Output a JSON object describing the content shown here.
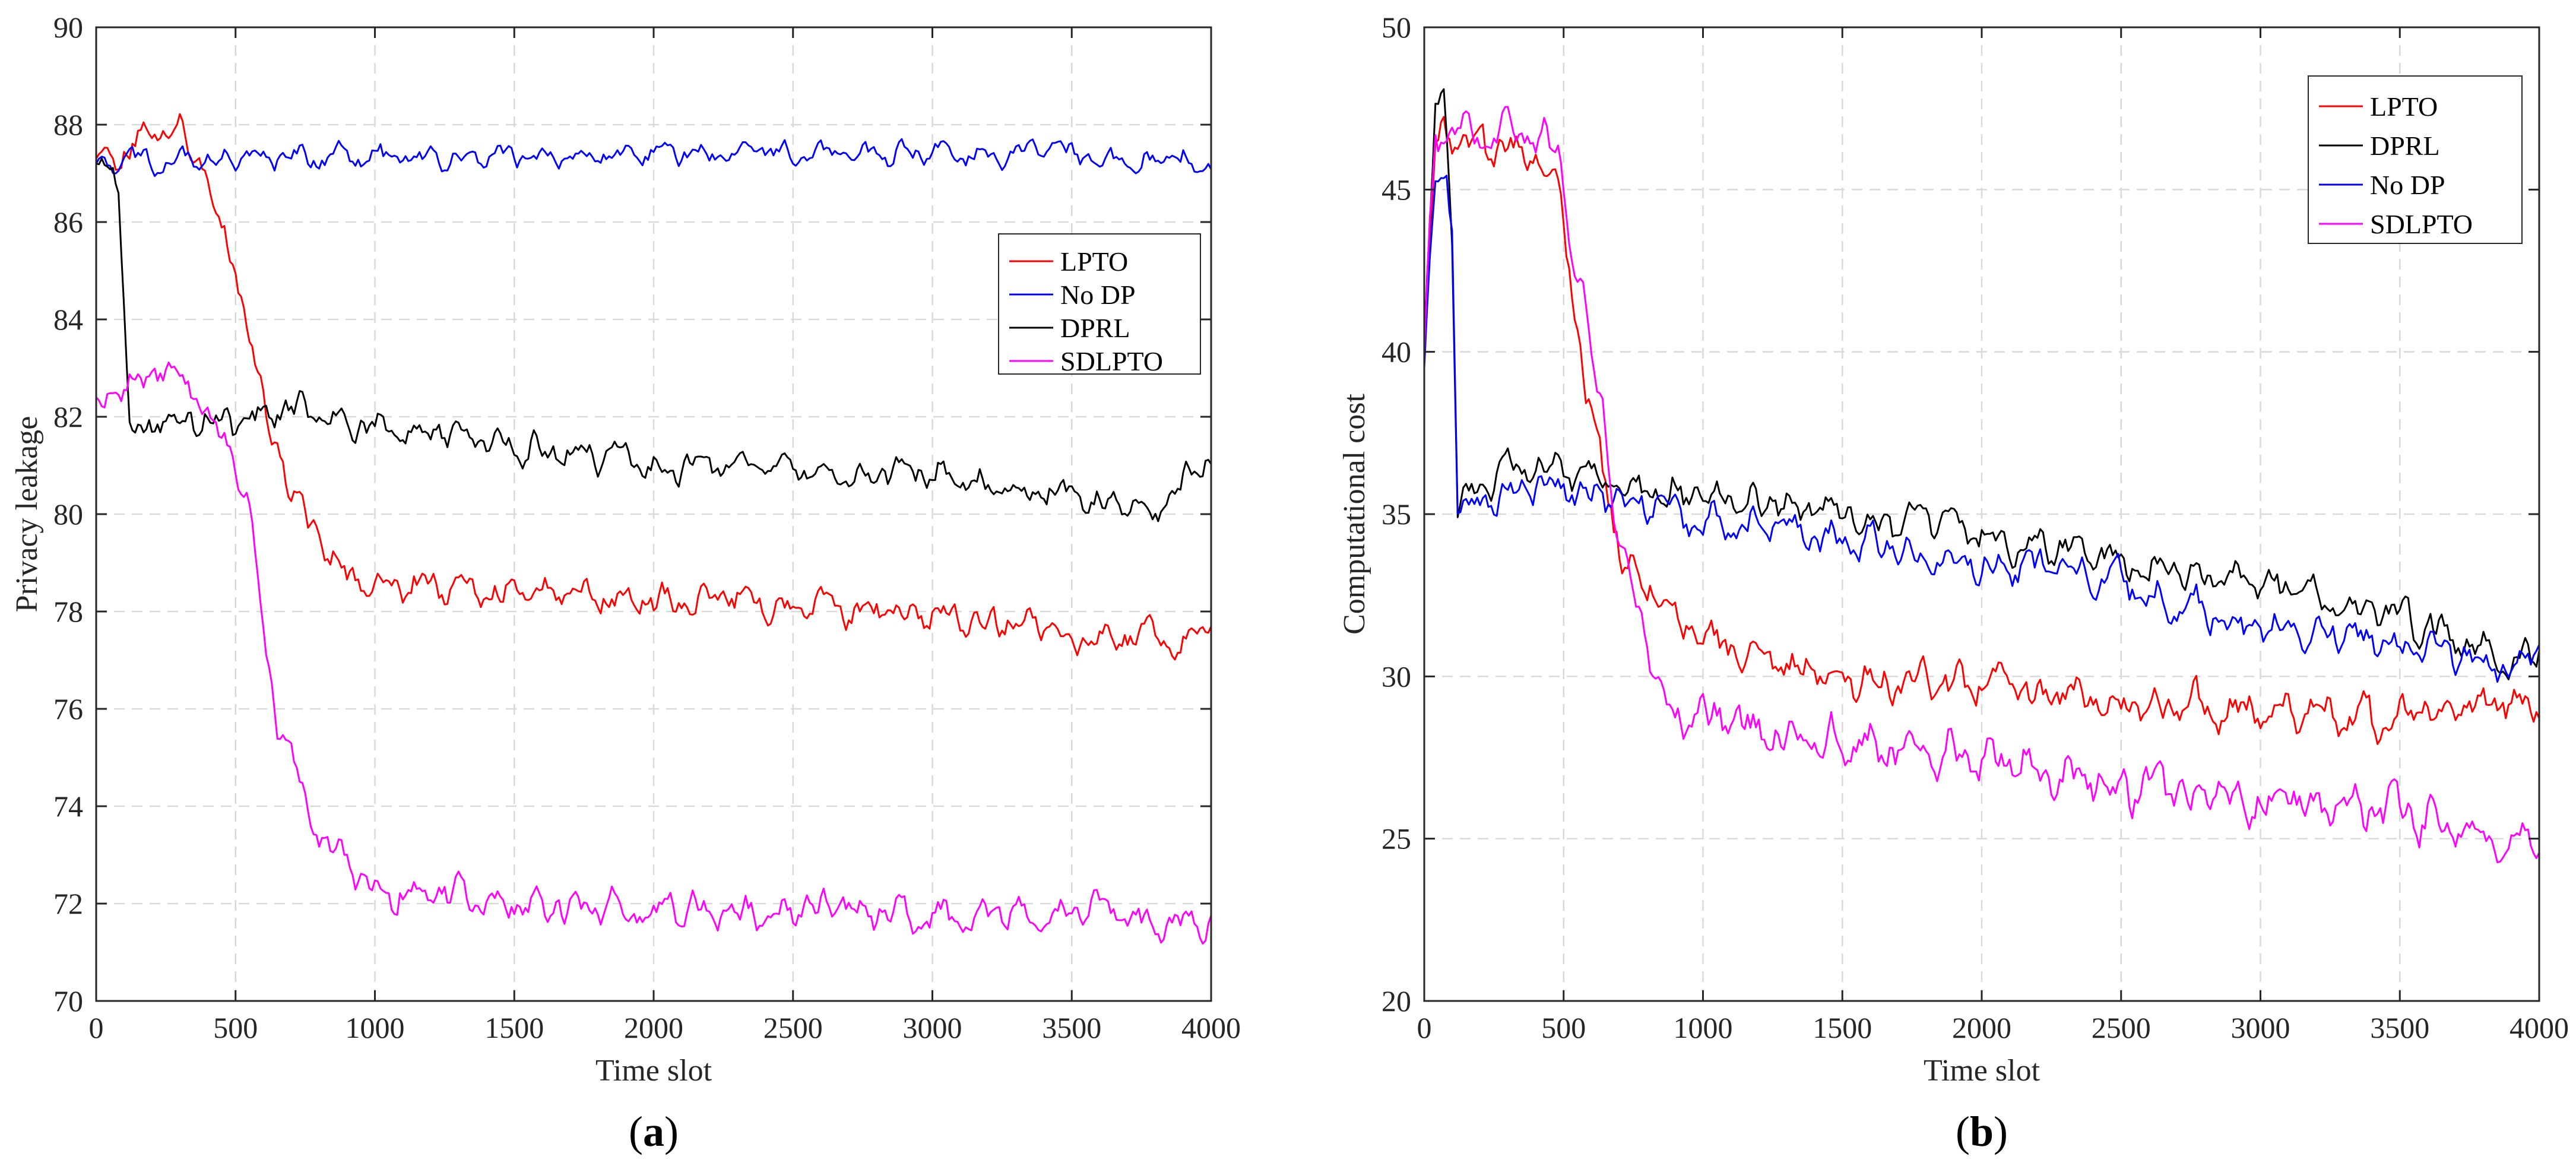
{
  "chart_data": [
    {
      "type": "line",
      "panel_label": {
        "open": "(",
        "letter": "a",
        "close": ")"
      },
      "title": "",
      "xlabel": "Time slot",
      "ylabel": "Privacy leakage",
      "xlim": [
        0,
        4000
      ],
      "ylim": [
        70,
        90
      ],
      "xticks": [
        0,
        500,
        1000,
        1500,
        2000,
        2500,
        3000,
        3500,
        4000
      ],
      "yticks": [
        70,
        72,
        74,
        76,
        78,
        80,
        82,
        84,
        86,
        88,
        90
      ],
      "grid": true,
      "legend_position": "right-upper",
      "series": [
        {
          "name": "LPTO",
          "color": "#ff0000",
          "x": [
            0,
            100,
            200,
            300,
            400,
            500,
            600,
            700,
            800,
            900,
            1000,
            1250,
            1500,
            1750,
            2000,
            2250,
            2500,
            2750,
            3000,
            3250,
            3500,
            3650,
            3800,
            3900,
            4000
          ],
          "y": [
            87.3,
            87.5,
            87.9,
            88.0,
            86.8,
            85.0,
            82.2,
            80.5,
            79.5,
            78.7,
            78.6,
            78.5,
            78.4,
            78.3,
            78.2,
            78.2,
            78.1,
            78.0,
            77.9,
            77.8,
            77.6,
            77.4,
            77.5,
            77.2,
            78.0
          ],
          "noise": 0.45
        },
        {
          "name": "No DP",
          "color": "#0000ff",
          "x": [
            0,
            500,
            1000,
            1500,
            2000,
            2500,
            3000,
            3500,
            4000
          ],
          "y": [
            87.2,
            87.3,
            87.35,
            87.4,
            87.4,
            87.45,
            87.4,
            87.35,
            87.2
          ],
          "noise": 0.35
        },
        {
          "name": "DPRL",
          "color": "#000000",
          "x": [
            0,
            80,
            120,
            200,
            300,
            400,
            500,
            700,
            1000,
            1300,
            1500,
            1800,
            2000,
            2500,
            3000,
            3500,
            3800,
            4000
          ],
          "y": [
            87.2,
            87.0,
            81.6,
            81.9,
            82.1,
            81.9,
            81.8,
            82.2,
            81.8,
            81.6,
            81.4,
            81.2,
            81.0,
            80.9,
            80.8,
            80.4,
            80.1,
            81.2
          ],
          "noise": 0.45
        },
        {
          "name": "SDLPTO",
          "color": "#ff00ff",
          "x": [
            0,
            200,
            300,
            500,
            550,
            600,
            650,
            700,
            750,
            800,
            900,
            1000,
            1500,
            2000,
            2500,
            3000,
            3500,
            4000
          ],
          "y": [
            82.4,
            82.8,
            83.0,
            81.0,
            80.0,
            77.5,
            75.8,
            75.1,
            74.2,
            73.5,
            72.8,
            72.3,
            72.0,
            71.9,
            71.9,
            71.8,
            71.9,
            71.5
          ],
          "noise": 0.5
        }
      ]
    },
    {
      "type": "line",
      "panel_label": {
        "open": "(",
        "letter": "b",
        "close": ")"
      },
      "title": "",
      "xlabel": "Time slot",
      "ylabel": "Computational cost",
      "xlim": [
        0,
        4000
      ],
      "ylim": [
        20,
        50
      ],
      "xticks": [
        0,
        500,
        1000,
        1500,
        2000,
        2500,
        3000,
        3500,
        4000
      ],
      "yticks": [
        20,
        25,
        30,
        35,
        40,
        45,
        50
      ],
      "grid": true,
      "legend_position": "top-right",
      "series": [
        {
          "name": "LPTO",
          "color": "#ff0000",
          "x": [
            0,
            40,
            100,
            200,
            300,
            400,
            480,
            530,
            580,
            650,
            700,
            800,
            1000,
            1200,
            1500,
            2000,
            2500,
            3000,
            3500,
            3800,
            4000
          ],
          "y": [
            40.0,
            46.5,
            46.8,
            46.5,
            46.0,
            46.5,
            45.0,
            42.0,
            39.0,
            36.0,
            34.0,
            32.8,
            31.2,
            30.5,
            30.0,
            29.6,
            29.3,
            28.9,
            28.7,
            29.2,
            29.1
          ],
          "noise": 0.9
        },
        {
          "name": "DPRL",
          "color": "#000000",
          "x": [
            0,
            40,
            70,
            100,
            120,
            300,
            500,
            800,
            1000,
            1500,
            2000,
            2500,
            3000,
            3500,
            3900,
            4000
          ],
          "y": [
            40.0,
            47.5,
            48.0,
            44.0,
            35.6,
            36.4,
            36.3,
            35.8,
            35.6,
            35.0,
            34.4,
            33.6,
            32.8,
            31.8,
            30.5,
            30.8
          ],
          "noise": 0.8
        },
        {
          "name": "No DP",
          "color": "#0000ff",
          "x": [
            0,
            40,
            80,
            100,
            120,
            300,
            500,
            800,
            1000,
            1500,
            2000,
            2500,
            2700,
            3000,
            3500,
            3900,
            4000
          ],
          "y": [
            39.5,
            45.5,
            46.0,
            44.0,
            34.8,
            35.8,
            35.8,
            35.3,
            34.8,
            34.3,
            33.5,
            33.0,
            32.2,
            31.5,
            31.0,
            30.2,
            31.0
          ],
          "noise": 0.8
        },
        {
          "name": "SDLPTO",
          "color": "#ff00ff",
          "x": [
            0,
            40,
            100,
            200,
            300,
            400,
            480,
            530,
            580,
            650,
            700,
            800,
            900,
            1000,
            1500,
            2000,
            2500,
            3000,
            3500,
            3880,
            4000
          ],
          "y": [
            40.0,
            46.5,
            46.5,
            47.0,
            47.2,
            46.5,
            46.0,
            43.0,
            41.0,
            38.0,
            34.0,
            31.0,
            28.8,
            28.6,
            28.0,
            27.4,
            26.6,
            26.2,
            25.8,
            25.0,
            25.2
          ],
          "noise": 1.0
        }
      ]
    }
  ]
}
